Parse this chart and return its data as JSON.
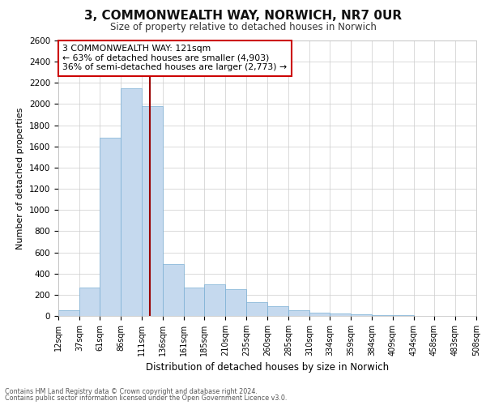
{
  "title": "3, COMMONWEALTH WAY, NORWICH, NR7 0UR",
  "subtitle": "Size of property relative to detached houses in Norwich",
  "xlabel": "Distribution of detached houses by size in Norwich",
  "ylabel": "Number of detached properties",
  "footnote1": "Contains HM Land Registry data © Crown copyright and database right 2024.",
  "footnote2": "Contains public sector information licensed under the Open Government Licence v3.0.",
  "property_size": 121,
  "annotation_line1": "3 COMMONWEALTH WAY: 121sqm",
  "annotation_line2": "← 63% of detached houses are smaller (4,903)",
  "annotation_line3": "36% of semi-detached houses are larger (2,773) →",
  "bar_color": "#c5d9ee",
  "bar_edge_color": "#7aafd4",
  "marker_color": "#990000",
  "bin_edges": [
    12,
    37,
    61,
    86,
    111,
    136,
    161,
    185,
    210,
    235,
    260,
    285,
    310,
    334,
    359,
    384,
    409,
    434,
    458,
    483,
    508
  ],
  "bin_labels": [
    "12sqm",
    "37sqm",
    "61sqm",
    "86sqm",
    "111sqm",
    "136sqm",
    "161sqm",
    "185sqm",
    "210sqm",
    "235sqm",
    "260sqm",
    "285sqm",
    "310sqm",
    "334sqm",
    "359sqm",
    "384sqm",
    "409sqm",
    "434sqm",
    "458sqm",
    "483sqm",
    "508sqm"
  ],
  "counts": [
    50,
    270,
    1680,
    2150,
    1980,
    490,
    270,
    300,
    250,
    130,
    90,
    50,
    30,
    20,
    15,
    10,
    5,
    3,
    2,
    1
  ],
  "ylim": [
    0,
    2600
  ],
  "yticks": [
    0,
    200,
    400,
    600,
    800,
    1000,
    1200,
    1400,
    1600,
    1800,
    2000,
    2200,
    2400,
    2600
  ],
  "background_color": "#ffffff",
  "grid_color": "#cccccc"
}
